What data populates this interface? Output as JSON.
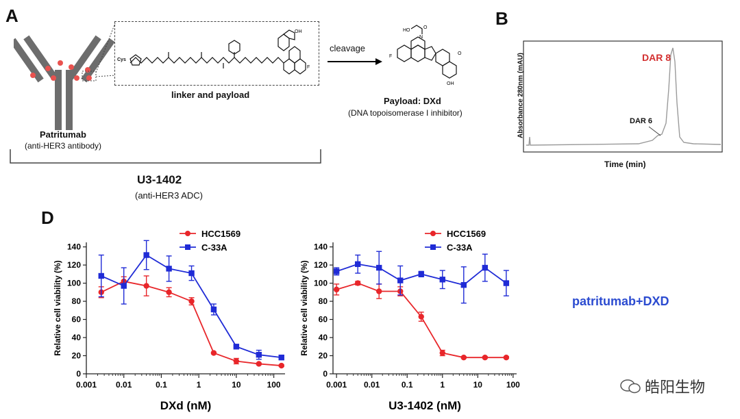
{
  "panel_a": {
    "letter": "A",
    "antibody_name": "Patritumab",
    "antibody_desc": "(anti-HER3 antibody)",
    "linker_label": "linker and payload",
    "cys_label": "Cys",
    "cleavage_label": "cleavage",
    "payload_name": "Payload: DXd",
    "payload_desc": "(DNA topoisomerase I inhibitor)",
    "adc_name": "U3-1402",
    "adc_desc": "(anti-HER3 ADC)"
  },
  "panel_b": {
    "letter": "B",
    "ylabel": "Absorbance 280nm (mAU)",
    "xlabel": "Time (min)",
    "peak_major": "DAR 8",
    "peak_minor": "DAR 6",
    "colors": {
      "major": "#d32f2f",
      "trace": "#9a9a9a"
    }
  },
  "panel_d": {
    "letter": "D"
  },
  "side_caption": "patritumab+DXD",
  "watermark": "皓阳生物",
  "colors": {
    "red": "#e8262a",
    "blue": "#1f2bd6",
    "caption": "#2b4bd0"
  },
  "chart_data": [
    {
      "type": "line",
      "xscale": "log",
      "xlabel": "DXd (nM)",
      "ylabel": "Relative cell viability (%)",
      "xticks": [
        "0.001",
        "0.01",
        "0.1",
        "1",
        "10",
        "100"
      ],
      "yticks": [
        "0",
        "20",
        "40",
        "60",
        "80",
        "100",
        "120",
        "140"
      ],
      "ylim": [
        0,
        145
      ],
      "xlim_log10": [
        -3.0,
        2.3
      ],
      "series": [
        {
          "name": "HCC1569",
          "color": "red",
          "marker": "circle",
          "x": [
            0.0025,
            0.01,
            0.04,
            0.16,
            0.64,
            2.5,
            10,
            40,
            160
          ],
          "y": [
            90,
            102,
            97,
            90,
            80,
            23,
            14,
            11,
            9
          ],
          "err": [
            6,
            5,
            11,
            5,
            4,
            1,
            3,
            1,
            1
          ]
        },
        {
          "name": "C-33A",
          "color": "blue",
          "marker": "square",
          "x": [
            0.0025,
            0.01,
            0.04,
            0.16,
            0.64,
            2.5,
            10,
            40,
            160
          ],
          "y": [
            108,
            97,
            131,
            116,
            111,
            71,
            30,
            21,
            18
          ],
          "err": [
            23,
            20,
            16,
            14,
            8,
            6,
            1,
            5,
            2
          ]
        }
      ]
    },
    {
      "type": "line",
      "xscale": "log",
      "xlabel": "U3-1402 (nM)",
      "ylabel": "Relative cell viability (%)",
      "xticks": [
        "0.001",
        "0.01",
        "0.1",
        "1",
        "10",
        "100"
      ],
      "yticks": [
        "0",
        "20",
        "40",
        "60",
        "80",
        "100",
        "120",
        "140"
      ],
      "ylim": [
        0,
        145
      ],
      "xlim_log10": [
        -3.1,
        2.1
      ],
      "series": [
        {
          "name": "HCC1569",
          "color": "red",
          "marker": "circle",
          "x": [
            0.001,
            0.004,
            0.016,
            0.064,
            0.25,
            1,
            4,
            16,
            64
          ],
          "y": [
            93,
            100,
            91,
            91,
            63,
            23,
            18,
            18,
            18
          ],
          "err": [
            6,
            2,
            8,
            5,
            5,
            3,
            1,
            1,
            1
          ]
        },
        {
          "name": "C-33A",
          "color": "blue",
          "marker": "square",
          "x": [
            0.001,
            0.004,
            0.016,
            0.064,
            0.25,
            1,
            4,
            16,
            64
          ],
          "y": [
            113,
            121,
            117,
            103,
            110,
            104,
            98,
            117,
            100
          ],
          "err": [
            4,
            10,
            18,
            16,
            3,
            10,
            20,
            15,
            14
          ]
        }
      ]
    }
  ]
}
